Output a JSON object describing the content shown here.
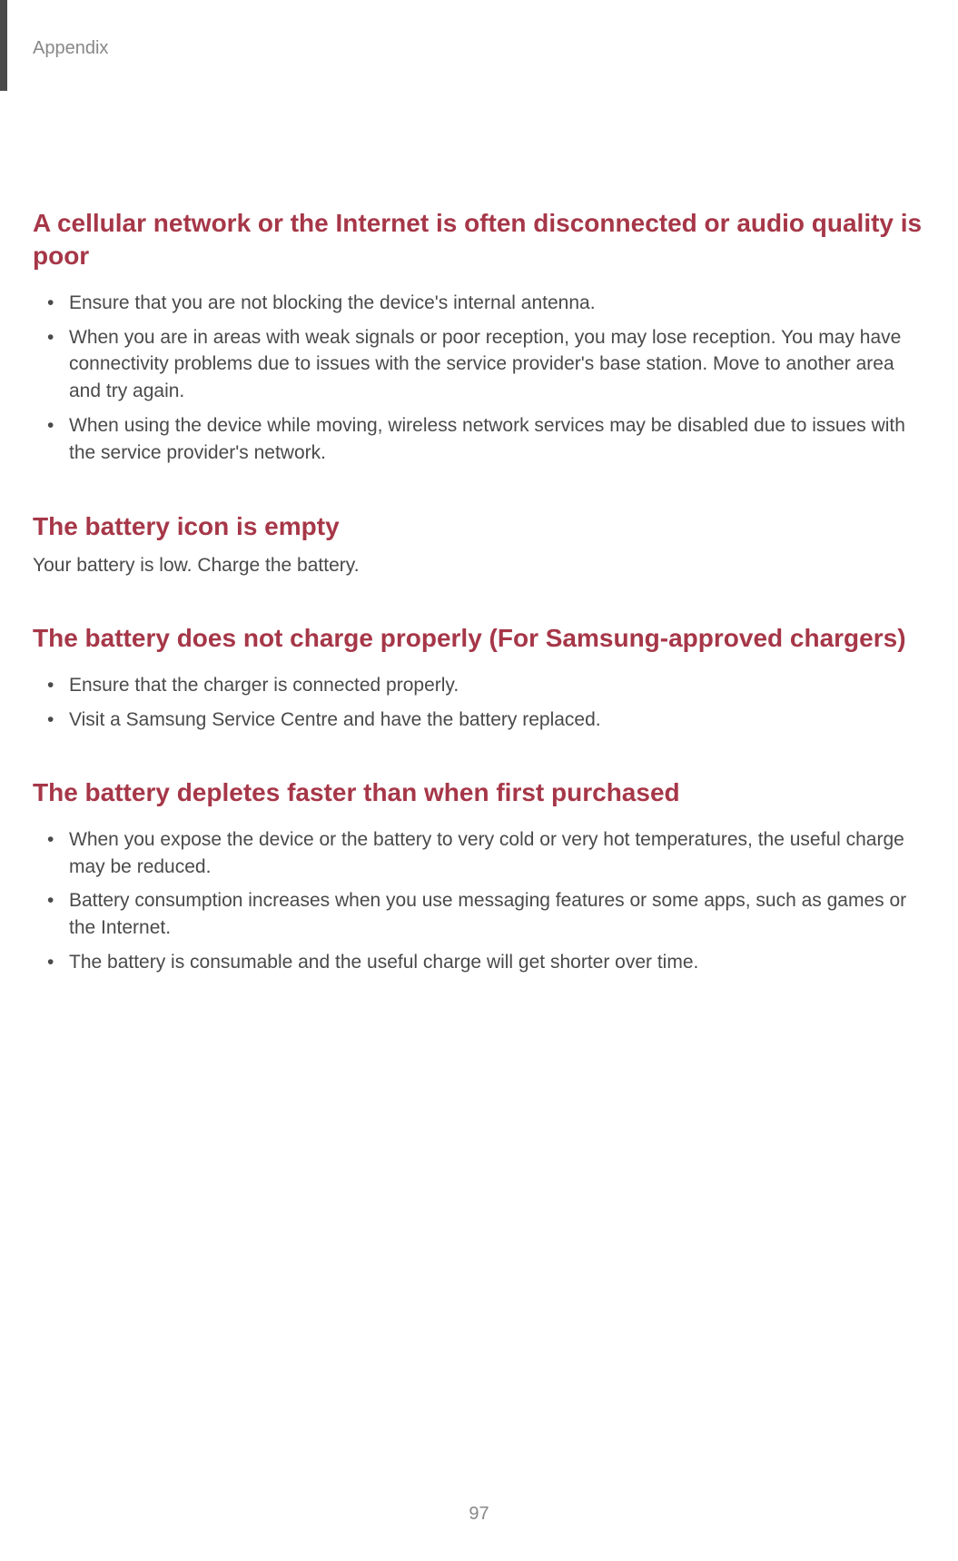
{
  "header": {
    "label": "Appendix"
  },
  "sections": [
    {
      "heading": "A cellular network or the Internet is often disconnected or audio quality is poor",
      "bullets": [
        "Ensure that you are not blocking the device's internal antenna.",
        "When you are in areas with weak signals or poor reception, you may lose reception. You may have connectivity problems due to issues with the service provider's base station. Move to another area and try again.",
        "When using the device while moving, wireless network services may be disabled due to issues with the service provider's network."
      ]
    },
    {
      "heading": "The battery icon is empty",
      "body": "Your battery is low. Charge the battery."
    },
    {
      "heading": "The battery does not charge properly (For Samsung-approved chargers)",
      "bullets": [
        "Ensure that the charger is connected properly.",
        "Visit a Samsung Service Centre and have the battery replaced."
      ]
    },
    {
      "heading": "The battery depletes faster than when first purchased",
      "bullets": [
        "When you expose the device or the battery to very cold or very hot temperatures, the useful charge may be reduced.",
        "Battery consumption increases when you use messaging features or some apps, such as games or the Internet.",
        "The battery is consumable and the useful charge will get shorter over time."
      ]
    }
  ],
  "page_number": "97",
  "colors": {
    "heading_color": "#a63748",
    "body_color": "#4a4a4a",
    "muted_color": "#888888",
    "background": "#ffffff"
  },
  "typography": {
    "heading_fontsize": 28,
    "body_fontsize": 21,
    "header_label_fontsize": 20,
    "page_number_fontsize": 20
  }
}
